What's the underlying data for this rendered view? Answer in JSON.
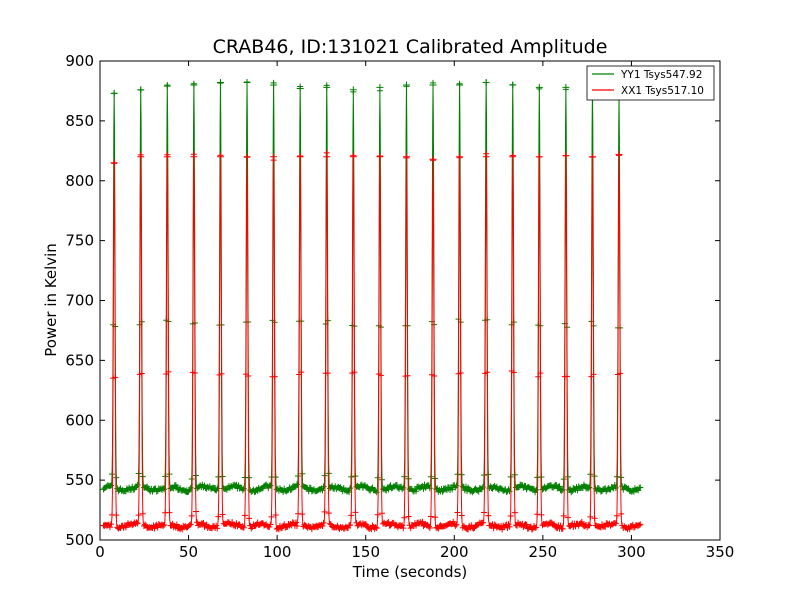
{
  "chart_data": {
    "type": "line",
    "title": "CRAB46, ID:131021 Calibrated Amplitude",
    "xlabel": "Time (seconds)",
    "ylabel": "Power in Kelvin",
    "xlim": [
      0,
      350
    ],
    "ylim": [
      500,
      900
    ],
    "xticks": [
      0,
      50,
      100,
      150,
      200,
      250,
      300,
      350
    ],
    "yticks": [
      500,
      550,
      600,
      650,
      700,
      750,
      800,
      850,
      900
    ],
    "grid": false,
    "legend_position": "top-right",
    "series": [
      {
        "name": "YY1 Tsys547.92",
        "color": "#008000",
        "marker": "+",
        "baseline": 543,
        "peak_times": [
          8,
          23,
          38,
          53,
          68,
          83,
          98,
          113,
          128,
          143,
          158,
          173,
          188,
          203,
          218,
          233,
          248,
          263,
          278,
          293
        ],
        "peak_values": [
          873,
          876,
          879,
          880,
          882,
          882,
          880,
          877,
          878,
          876,
          878,
          880,
          880,
          880,
          882,
          880,
          878,
          878,
          878,
          868
        ],
        "start_point": [
          0,
          553
        ],
        "end_point": [
          307,
          552
        ],
        "x_end": 305
      },
      {
        "name": "XX1 Tsys517.10",
        "color": "#ff0000",
        "marker": "+",
        "baseline": 512,
        "peak_times": [
          8,
          23,
          38,
          53,
          68,
          83,
          98,
          113,
          128,
          143,
          158,
          173,
          188,
          203,
          218,
          233,
          248,
          263,
          278,
          293
        ],
        "peak_values": [
          815,
          820,
          820,
          820,
          820,
          820,
          820,
          820,
          820,
          820,
          820,
          820,
          818,
          820,
          820,
          820,
          820,
          821,
          820,
          822
        ],
        "start_point": [
          0,
          523
        ],
        "end_point": [
          307,
          522
        ],
        "x_end": 305
      }
    ]
  }
}
